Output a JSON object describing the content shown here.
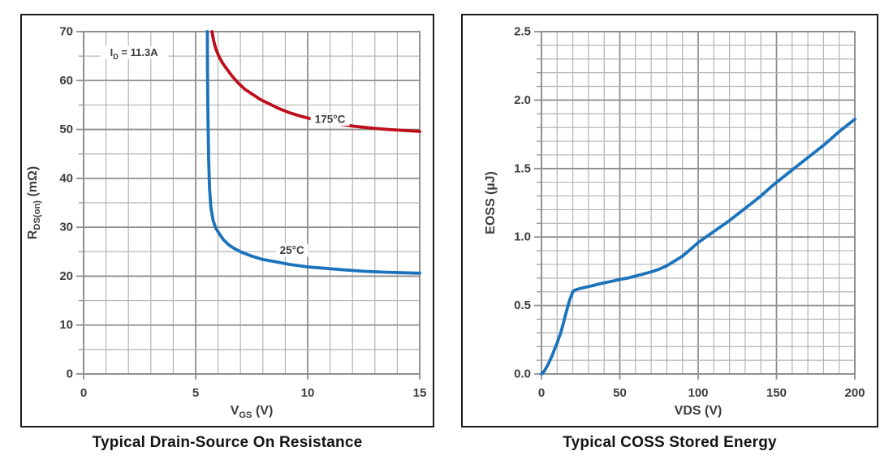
{
  "page": {
    "background": "#ffffff"
  },
  "colors": {
    "blue_curve": "#1b73bc",
    "red_curve": "#be0e1c",
    "grid_minor": "#b4b4b4",
    "grid_major": "#8e8e8e",
    "label_text": "#3d3d3d",
    "frame": "#1c1c1c"
  },
  "chart_data": [
    {
      "type": "line",
      "title": "Typical Drain-Source On Resistance",
      "xlabel": "VGS (V)",
      "xlabel_parts": [
        {
          "t": "V"
        },
        {
          "t": "GS",
          "sub": true
        },
        {
          "t": " (V)"
        }
      ],
      "ylabel": "RDS(on) (mΩ)",
      "ylabel_parts": [
        {
          "t": "R"
        },
        {
          "t": "DS(on)",
          "sub": true
        },
        {
          "t": " (mΩ)"
        }
      ],
      "xlim": [
        0,
        15
      ],
      "ylim": [
        0,
        70
      ],
      "x_minor": 1,
      "y_minor": 5,
      "grid": true,
      "x_ticks": {
        "values": [
          0,
          5,
          10,
          15
        ],
        "labels": [
          "0",
          "5",
          "10",
          "15"
        ]
      },
      "y_ticks": {
        "values": [
          0,
          10,
          20,
          30,
          40,
          50,
          60,
          70
        ],
        "labels": [
          "0",
          "10",
          "20",
          "30",
          "40",
          "50",
          "60",
          "70"
        ]
      },
      "annotations": [
        {
          "parts": [
            {
              "t": "I"
            },
            {
              "t": "D",
              "sub": true
            },
            {
              "t": " = 11.3A"
            }
          ],
          "text": "ID = 11.3A",
          "x": 2.25,
          "y": 65.7,
          "w": 84
        }
      ],
      "series": [
        {
          "name": "175°C",
          "color": "#be0e1c",
          "label_x": 11.0,
          "label_y": 52.1,
          "points": [
            [
              5.73,
              70
            ],
            [
              5.8,
              68.2
            ],
            [
              5.9,
              66.5
            ],
            [
              6.05,
              64.8
            ],
            [
              6.2,
              63.6
            ],
            [
              6.4,
              62.3
            ],
            [
              6.65,
              60.8
            ],
            [
              6.9,
              59.5
            ],
            [
              7.2,
              58.2
            ],
            [
              7.5,
              57.3
            ],
            [
              7.9,
              56.1
            ],
            [
              8.3,
              55.2
            ],
            [
              8.7,
              54.3
            ],
            [
              9.2,
              53.4
            ],
            [
              9.7,
              52.7
            ],
            [
              10.2,
              52.1
            ],
            [
              10.8,
              51.6
            ],
            [
              11.4,
              51.1
            ],
            [
              12.0,
              50.7
            ],
            [
              12.8,
              50.3
            ],
            [
              13.6,
              50.0
            ],
            [
              14.3,
              49.8
            ],
            [
              15,
              49.6
            ]
          ]
        },
        {
          "name": "25°C",
          "color": "#1b73bc",
          "label_x": 9.3,
          "label_y": 25.3,
          "points": [
            [
              5.52,
              70
            ],
            [
              5.53,
              62
            ],
            [
              5.55,
              52
            ],
            [
              5.58,
              44
            ],
            [
              5.62,
              38
            ],
            [
              5.68,
              34
            ],
            [
              5.78,
              31.4
            ],
            [
              5.9,
              29.8
            ],
            [
              6.05,
              28.7
            ],
            [
              6.25,
              27.4
            ],
            [
              6.5,
              26.3
            ],
            [
              6.75,
              25.6
            ],
            [
              7.0,
              25.0
            ],
            [
              7.5,
              24.1
            ],
            [
              8.0,
              23.4
            ],
            [
              8.6,
              22.9
            ],
            [
              9.2,
              22.4
            ],
            [
              10.0,
              21.9
            ],
            [
              10.8,
              21.6
            ],
            [
              11.6,
              21.3
            ],
            [
              12.5,
              21.0
            ],
            [
              13.5,
              20.8
            ],
            [
              14.2,
              20.7
            ],
            [
              15,
              20.6
            ]
          ]
        }
      ]
    },
    {
      "type": "line",
      "title": "Typical COSS Stored Energy",
      "xlabel": "VDS (V)",
      "xlabel_parts": [
        {
          "t": "VDS (V)"
        }
      ],
      "ylabel": "EOSS (µJ)",
      "ylabel_parts": [
        {
          "t": "EOSS (µJ)"
        }
      ],
      "xlim": [
        0,
        200
      ],
      "ylim": [
        0,
        2.5
      ],
      "x_minor": 10,
      "y_minor": 0.1,
      "grid": true,
      "x_ticks": {
        "values": [
          0,
          50,
          100,
          150,
          200
        ],
        "labels": [
          "0",
          "50",
          "100",
          "150",
          "200"
        ]
      },
      "y_ticks": {
        "values": [
          0,
          0.5,
          1.0,
          1.5,
          2.0,
          2.5
        ],
        "labels": [
          "0.0",
          "0.5",
          "1.0",
          "1.5",
          "2.0",
          "2.5"
        ]
      },
      "annotations": [],
      "series": [
        {
          "name": "EOSS",
          "color": "#1b73bc",
          "points": [
            [
              0,
              0
            ],
            [
              1,
              0.01
            ],
            [
              2,
              0.025
            ],
            [
              3,
              0.045
            ],
            [
              4,
              0.065
            ],
            [
              5,
              0.09
            ],
            [
              6,
              0.115
            ],
            [
              7,
              0.14
            ],
            [
              8,
              0.17
            ],
            [
              9,
              0.2
            ],
            [
              10,
              0.225
            ],
            [
              11,
              0.26
            ],
            [
              12,
              0.29
            ],
            [
              13,
              0.33
            ],
            [
              14,
              0.37
            ],
            [
              15,
              0.42
            ],
            [
              16,
              0.46
            ],
            [
              17,
              0.5
            ],
            [
              18,
              0.54
            ],
            [
              19,
              0.57
            ],
            [
              20,
              0.6
            ],
            [
              21,
              0.61
            ],
            [
              22,
              0.615
            ],
            [
              24,
              0.622
            ],
            [
              26,
              0.628
            ],
            [
              28,
              0.633
            ],
            [
              30,
              0.638
            ],
            [
              33,
              0.646
            ],
            [
              36,
              0.655
            ],
            [
              40,
              0.665
            ],
            [
              45,
              0.677
            ],
            [
              50,
              0.69
            ],
            [
              55,
              0.7
            ],
            [
              60,
              0.715
            ],
            [
              65,
              0.73
            ],
            [
              70,
              0.745
            ],
            [
              75,
              0.765
            ],
            [
              80,
              0.79
            ],
            [
              85,
              0.825
            ],
            [
              90,
              0.86
            ],
            [
              95,
              0.91
            ],
            [
              100,
              0.96
            ],
            [
              105,
              1.0
            ],
            [
              110,
              1.04
            ],
            [
              115,
              1.08
            ],
            [
              120,
              1.12
            ],
            [
              125,
              1.165
            ],
            [
              130,
              1.21
            ],
            [
              135,
              1.255
            ],
            [
              140,
              1.3
            ],
            [
              145,
              1.35
            ],
            [
              150,
              1.4
            ],
            [
              155,
              1.445
            ],
            [
              160,
              1.49
            ],
            [
              165,
              1.535
            ],
            [
              170,
              1.58
            ],
            [
              175,
              1.625
            ],
            [
              180,
              1.67
            ],
            [
              185,
              1.72
            ],
            [
              190,
              1.77
            ],
            [
              195,
              1.815
            ],
            [
              200,
              1.86
            ]
          ]
        }
      ]
    }
  ]
}
